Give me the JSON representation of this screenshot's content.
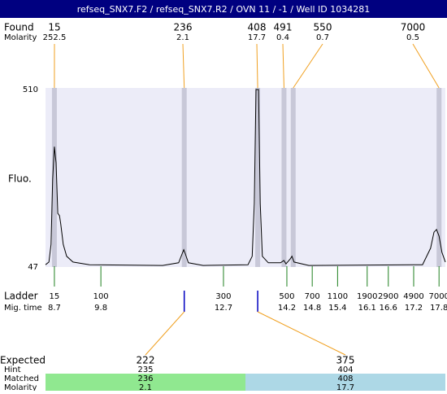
{
  "title": "refseq_SNX7.F2 / refseq_SNX7.R2 / OVN 11 / -1 / Well ID 1034281",
  "found": {
    "label": "Found",
    "molarity_label": "Molarity",
    "peaks": [
      {
        "size": 15,
        "molarity": 252.5
      },
      {
        "size": 236,
        "molarity": 2.1
      },
      {
        "size": 408,
        "molarity": 17.7
      },
      {
        "size": 491,
        "molarity": 0.4
      },
      {
        "size": 550,
        "molarity": 0.7
      },
      {
        "size": 7000,
        "molarity": 0.5
      }
    ]
  },
  "trace": {
    "type": "line",
    "ylabel": "Fluo.",
    "ylim": [
      47,
      510
    ],
    "yticks": [
      47,
      510
    ],
    "xlim": [
      8.49,
      17.95
    ],
    "x": [
      8.49,
      8.57,
      8.62,
      8.66,
      8.7,
      8.74,
      8.78,
      8.82,
      8.85,
      8.91,
      8.99,
      9.14,
      9.53,
      11.26,
      11.64,
      11.72,
      11.76,
      11.8,
      11.87,
      12.22,
      13.28,
      13.38,
      13.43,
      13.47,
      13.53,
      13.57,
      13.62,
      13.76,
      14.05,
      14.13,
      14.18,
      14.28,
      14.32,
      14.37,
      14.72,
      17.41,
      17.6,
      17.68,
      17.74,
      17.8,
      17.87,
      17.95
    ],
    "values": [
      53,
      60,
      106,
      276,
      361,
      319,
      187,
      181,
      160,
      106,
      75,
      60,
      53,
      51,
      58,
      81,
      92,
      81,
      58,
      51,
      53,
      75,
      213,
      510,
      510,
      213,
      75,
      58,
      58,
      64,
      55,
      68,
      75,
      60,
      51,
      53,
      96,
      138,
      145,
      128,
      85,
      60
    ]
  },
  "ladder": {
    "label": "Ladder",
    "time_label": "Mig. time",
    "sizes": [
      15,
      100,
      300,
      500,
      700,
      1100,
      1900,
      2900,
      4900,
      7000
    ],
    "mig_times": [
      8.7,
      9.8,
      12.7,
      14.2,
      14.8,
      15.4,
      16.1,
      16.6,
      17.2,
      17.8
    ]
  },
  "expected": {
    "label": "Expected",
    "hint_label": "Hint",
    "matched_label": "Matched",
    "molarity_label": "Molarity",
    "items": [
      {
        "size": 222,
        "hint": 235,
        "matched": 236,
        "molarity": 2.1
      },
      {
        "size": 375,
        "hint": 404,
        "matched": 408,
        "molarity": 17.7
      }
    ]
  }
}
